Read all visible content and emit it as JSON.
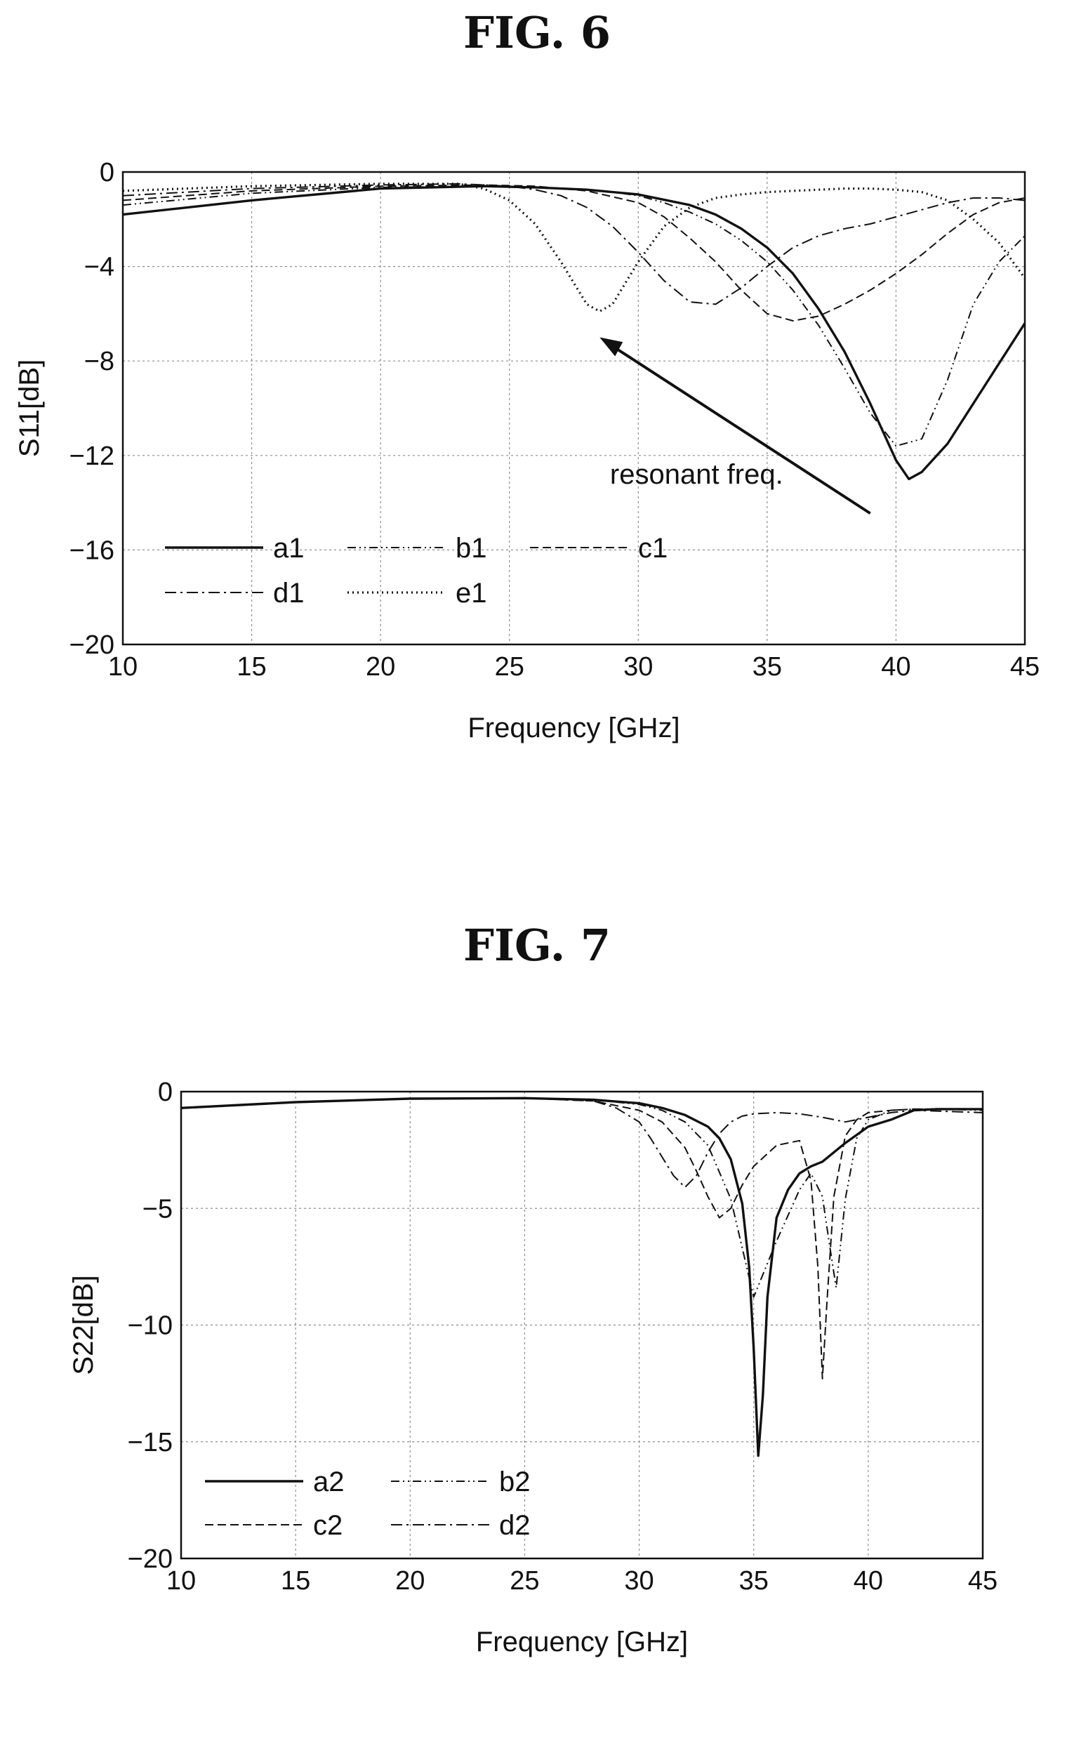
{
  "chart_data": [
    {
      "type": "line",
      "title": "FIG. 6",
      "xlabel": "Frequency [GHz]",
      "ylabel": "S11[dB]",
      "xlim": [
        10,
        45
      ],
      "ylim": [
        -20,
        0
      ],
      "x_ticks": [
        "10",
        "15",
        "20",
        "25",
        "30",
        "35",
        "40",
        "45"
      ],
      "y_ticks": [
        "0",
        "-4",
        "-8",
        "-12",
        "-16",
        "-20"
      ],
      "grid": true,
      "legend_position": "lower-left",
      "annotation": "resonant freq.",
      "series": [
        {
          "name": "a1",
          "style": "solid",
          "x": [
            10,
            15,
            20,
            24,
            26,
            28,
            30,
            32,
            33,
            34,
            35,
            36,
            37,
            38,
            39,
            40,
            40.5,
            41,
            42,
            43,
            44,
            45
          ],
          "y": [
            -1.8,
            -1.2,
            -0.7,
            -0.6,
            -0.65,
            -0.75,
            -0.95,
            -1.4,
            -1.8,
            -2.4,
            -3.2,
            -4.3,
            -5.8,
            -7.6,
            -9.8,
            -12.2,
            -13.0,
            -12.7,
            -11.5,
            -9.8,
            -8.1,
            -6.4
          ]
        },
        {
          "name": "b1",
          "style": "dash-dot-dot",
          "x": [
            10,
            15,
            20,
            24,
            26,
            28,
            29,
            30,
            31,
            32,
            33,
            34,
            35,
            36,
            37,
            38,
            39,
            40,
            41,
            42,
            43,
            44,
            45
          ],
          "y": [
            -1.4,
            -0.9,
            -0.65,
            -0.6,
            -0.65,
            -0.75,
            -0.85,
            -1.0,
            -1.3,
            -1.7,
            -2.2,
            -2.9,
            -3.8,
            -5.0,
            -6.5,
            -8.3,
            -10.2,
            -11.6,
            -11.3,
            -8.8,
            -5.6,
            -3.8,
            -2.7
          ]
        },
        {
          "name": "c1",
          "style": "dashed",
          "x": [
            10,
            15,
            20,
            24,
            26,
            28,
            30,
            31,
            32,
            33,
            34,
            35,
            36,
            37,
            38,
            39,
            40,
            41,
            42,
            43,
            44,
            45
          ],
          "y": [
            -1.2,
            -0.8,
            -0.6,
            -0.55,
            -0.6,
            -0.8,
            -1.3,
            -1.9,
            -2.8,
            -3.8,
            -5.0,
            -6.0,
            -6.3,
            -6.1,
            -5.6,
            -5.0,
            -4.3,
            -3.5,
            -2.6,
            -1.8,
            -1.3,
            -1.1
          ]
        },
        {
          "name": "d1",
          "style": "dash-dot",
          "x": [
            10,
            15,
            20,
            23,
            25,
            26,
            27,
            28,
            29,
            30,
            31,
            32,
            33,
            34,
            35,
            36,
            37,
            38,
            39,
            40,
            41,
            42,
            43,
            44,
            45
          ],
          "y": [
            -1.0,
            -0.7,
            -0.55,
            -0.5,
            -0.6,
            -0.75,
            -1.0,
            -1.5,
            -2.3,
            -3.4,
            -4.6,
            -5.5,
            -5.6,
            -4.9,
            -4.0,
            -3.2,
            -2.7,
            -2.4,
            -2.2,
            -1.9,
            -1.6,
            -1.3,
            -1.1,
            -1.1,
            -1.2
          ]
        },
        {
          "name": "e1",
          "style": "dotted",
          "x": [
            10,
            15,
            20,
            23,
            24,
            25,
            26,
            27,
            28,
            28.5,
            29,
            30,
            31,
            32,
            33,
            34,
            35,
            36,
            37,
            38,
            39,
            40,
            41,
            42,
            43,
            44,
            45
          ],
          "y": [
            -0.8,
            -0.6,
            -0.5,
            -0.5,
            -0.7,
            -1.2,
            -2.2,
            -3.8,
            -5.6,
            -5.9,
            -5.6,
            -3.8,
            -2.3,
            -1.5,
            -1.1,
            -0.95,
            -0.85,
            -0.8,
            -0.75,
            -0.7,
            -0.7,
            -0.75,
            -0.85,
            -1.2,
            -2.0,
            -3.0,
            -4.5
          ]
        }
      ]
    },
    {
      "type": "line",
      "title": "FIG. 7",
      "xlabel": "Frequency [GHz]",
      "ylabel": "S22[dB]",
      "xlim": [
        10,
        45
      ],
      "ylim": [
        -20,
        0
      ],
      "x_ticks": [
        "10",
        "15",
        "20",
        "25",
        "30",
        "35",
        "40",
        "45"
      ],
      "y_ticks": [
        "0",
        "-5",
        "-10",
        "-15",
        "-20"
      ],
      "grid": true,
      "legend_position": "lower-left",
      "series": [
        {
          "name": "a2",
          "style": "solid",
          "x": [
            10,
            15,
            20,
            25,
            28,
            30,
            31,
            32,
            33,
            33.5,
            34,
            34.5,
            34.8,
            35,
            35.2,
            35.4,
            35.6,
            36,
            36.5,
            37,
            37.5,
            38,
            39,
            40,
            41,
            42,
            43,
            45
          ],
          "y": [
            -0.7,
            -0.45,
            -0.3,
            -0.28,
            -0.35,
            -0.5,
            -0.7,
            -1.0,
            -1.5,
            -2.0,
            -2.9,
            -4.8,
            -7.5,
            -11.0,
            -15.6,
            -13.0,
            -8.8,
            -5.4,
            -4.2,
            -3.5,
            -3.2,
            -3.0,
            -2.2,
            -1.5,
            -1.2,
            -0.8,
            -0.75,
            -0.75
          ]
        },
        {
          "name": "b2",
          "style": "dash-dot-dot",
          "x": [
            10,
            15,
            20,
            25,
            28,
            30,
            31,
            32,
            33,
            34,
            35,
            36,
            36.5,
            37,
            37.5,
            38,
            38.3,
            38.6,
            39,
            39.5,
            40,
            41,
            42,
            43,
            45
          ],
          "y": [
            -0.7,
            -0.45,
            -0.3,
            -0.28,
            -0.35,
            -0.55,
            -0.8,
            -1.3,
            -2.3,
            -4.6,
            -8.8,
            -6.4,
            -5.3,
            -4.2,
            -3.5,
            -4.5,
            -6.5,
            -8.4,
            -4.6,
            -2.0,
            -1.2,
            -0.8,
            -0.75,
            -0.75,
            -0.8
          ]
        },
        {
          "name": "c2",
          "style": "dashed",
          "x": [
            10,
            15,
            20,
            25,
            28,
            30,
            31,
            32,
            32.5,
            33,
            33.5,
            34,
            34.5,
            35,
            36,
            37,
            37.5,
            37.8,
            38,
            38.2,
            38.5,
            39,
            39.5,
            40,
            41,
            42,
            45
          ],
          "y": [
            -0.7,
            -0.45,
            -0.3,
            -0.28,
            -0.4,
            -0.8,
            -1.3,
            -2.4,
            -3.4,
            -4.5,
            -5.4,
            -5.0,
            -4.0,
            -3.2,
            -2.3,
            -2.1,
            -3.8,
            -7.5,
            -12.3,
            -9.0,
            -4.5,
            -1.9,
            -1.2,
            -0.9,
            -0.8,
            -0.75,
            -0.75
          ]
        },
        {
          "name": "d2",
          "style": "dash-dot",
          "x": [
            10,
            15,
            20,
            25,
            28,
            29,
            30,
            30.5,
            31,
            31.5,
            32,
            32.5,
            33,
            33.5,
            34,
            34.5,
            35,
            36,
            37,
            38,
            39,
            40,
            41,
            42,
            45
          ],
          "y": [
            -0.7,
            -0.45,
            -0.3,
            -0.28,
            -0.4,
            -0.7,
            -1.3,
            -2.0,
            -2.8,
            -3.6,
            -4.1,
            -3.6,
            -2.6,
            -1.8,
            -1.3,
            -1.05,
            -0.95,
            -0.9,
            -0.95,
            -1.1,
            -1.3,
            -1.1,
            -0.9,
            -0.8,
            -0.9
          ]
        }
      ]
    }
  ]
}
